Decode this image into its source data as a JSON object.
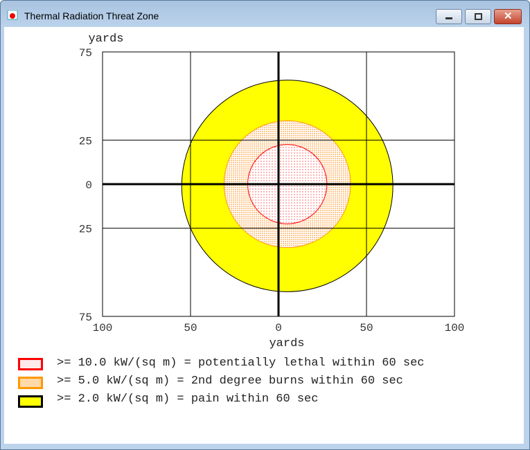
{
  "window": {
    "title": "Thermal Radiation Threat Zone"
  },
  "chart_data": {
    "type": "area",
    "xlabel": "yards",
    "ylabel": "yards",
    "xlim": [
      -100,
      100
    ],
    "ylim": [
      -75,
      75
    ],
    "xticks": [
      -100,
      -50,
      0,
      50,
      100
    ],
    "yticks": [
      75,
      25,
      0,
      -25,
      -75
    ],
    "xtick_labels": [
      "100",
      "50",
      "0",
      "50",
      "100"
    ],
    "ytick_labels": [
      "75",
      "25",
      "0",
      "25",
      "75"
    ],
    "grid": true,
    "zones": [
      {
        "name": ">= 2.0 kW/(sq m) = pain within 60 sec",
        "center": [
          5,
          -1
        ],
        "radius": 60,
        "fill": "#ffff00",
        "stroke": "#000000"
      },
      {
        "name": ">= 5.0 kW/(sq m) = 2nd degree burns within 60 sec",
        "center": [
          5,
          0
        ],
        "radius": 36,
        "fill": "#ffd9a8",
        "stroke": "#ff9900"
      },
      {
        "name": ">= 10.0 kW/(sq m) = potentially lethal within 60 sec",
        "center": [
          5,
          0
        ],
        "radius": 22.5,
        "fill": "#ffffff",
        "stroke": "#ff0000"
      }
    ]
  },
  "legend": [
    {
      "label": ">= 10.0 kW/(sq m) = potentially lethal within 60 sec",
      "border": "#ff0000",
      "fill": "#ffeaea"
    },
    {
      "label": ">= 5.0 kW/(sq m) = 2nd degree burns within 60 sec",
      "border": "#ff9900",
      "fill": "#ffd9a8"
    },
    {
      "label": ">= 2.0 kW/(sq m) = pain within 60 sec",
      "border": "#000000",
      "fill": "#ffff00"
    }
  ]
}
